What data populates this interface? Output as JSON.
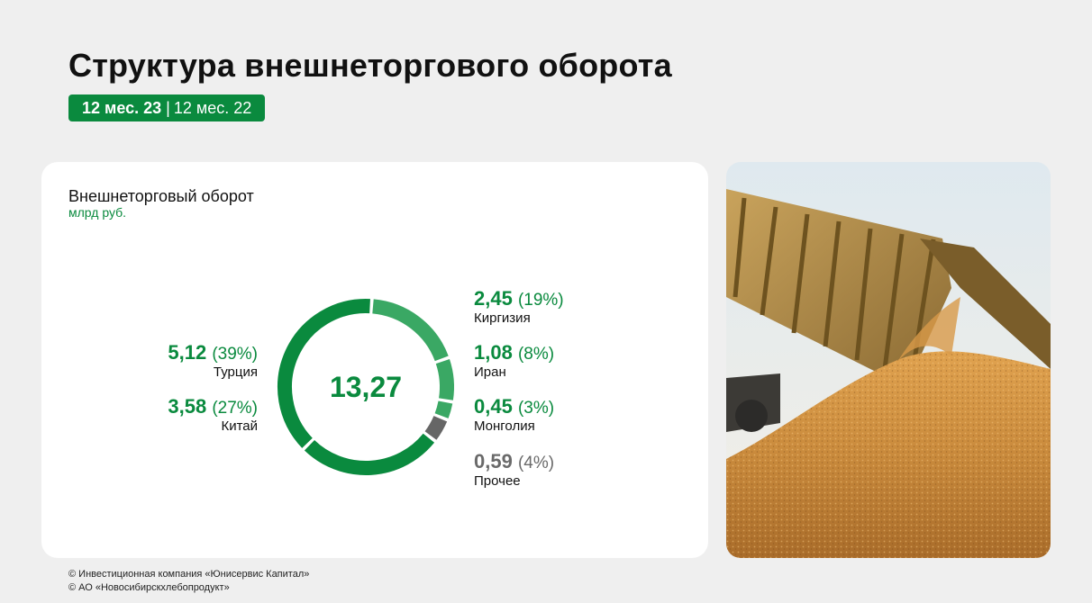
{
  "header": {
    "title": "Структура внешнеторгового оборота",
    "period_active": "12 мес. 23",
    "period_separator": "|",
    "period_other": "12 мес. 22"
  },
  "card": {
    "title": "Внешнеторговый оборот",
    "unit": "млрд руб.",
    "total": "13,27"
  },
  "colors": {
    "primary_green": "#0a8a3e",
    "mid_green": "#2e9e58",
    "light_green": "#3aa864",
    "grey": "#666666"
  },
  "chart_data": {
    "type": "pie",
    "title": "Внешнеторговый оборот",
    "unit": "млрд руб.",
    "total": 13.27,
    "slices": [
      {
        "name": "Турция",
        "value": 5.12,
        "value_label": "5,12",
        "percent_label": "(39%)",
        "color": "#0a8a3e",
        "side": "left"
      },
      {
        "name": "Китай",
        "value": 3.58,
        "value_label": "3,58",
        "percent_label": "(27%)",
        "color": "#0a8a3e",
        "side": "left"
      },
      {
        "name": "Киргизия",
        "value": 2.45,
        "value_label": "2,45",
        "percent_label": "(19%)",
        "color": "#3aa864",
        "side": "right"
      },
      {
        "name": "Иран",
        "value": 1.08,
        "value_label": "1,08",
        "percent_label": "(8%)",
        "color": "#3aa864",
        "side": "right"
      },
      {
        "name": "Монголия",
        "value": 0.45,
        "value_label": "0,45",
        "percent_label": "(3%)",
        "color": "#3aa864",
        "side": "right"
      },
      {
        "name": "Прочее",
        "value": 0.59,
        "value_label": "0,59",
        "percent_label": "(4%)",
        "color": "#666666",
        "side": "right"
      }
    ]
  },
  "footer": {
    "line1": "© Инвестиционная компания «Юнисервис Капитал»",
    "line2": "© АО «Новосибирскхлебопродукт»"
  },
  "photo": {
    "icon": "grain-truck-photo"
  }
}
